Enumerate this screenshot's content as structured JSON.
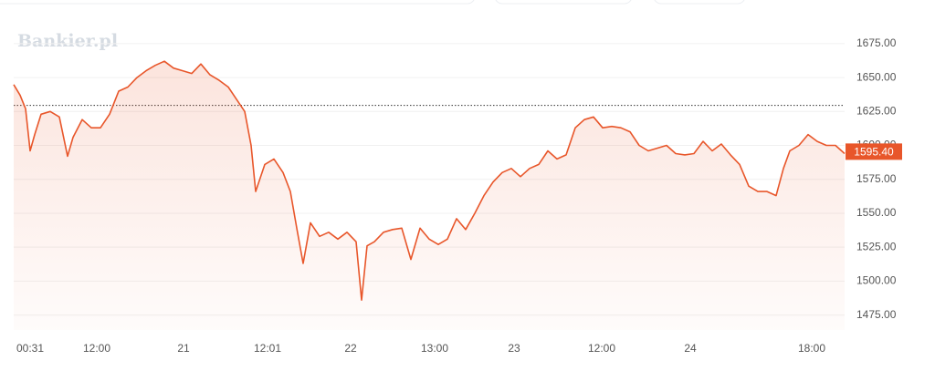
{
  "chart_data": {
    "type": "line",
    "watermark": "Bankier.pl",
    "x": [
      0,
      7,
      13,
      18,
      23,
      30,
      40,
      50,
      59,
      65,
      75,
      85,
      95,
      105,
      115,
      125,
      135,
      145,
      155,
      165,
      175,
      185,
      195,
      205,
      215,
      225,
      235,
      245,
      253,
      260,
      265,
      275,
      285,
      295,
      303,
      310,
      317,
      325,
      335,
      345,
      355,
      365,
      375,
      381,
      387,
      395,
      405,
      415,
      425,
      435,
      445,
      455,
      465,
      475,
      485,
      495,
      505,
      515,
      525,
      535,
      545,
      555,
      565,
      575,
      585,
      595,
      605,
      615,
      625,
      635,
      645,
      655,
      665,
      675,
      685,
      695,
      705,
      715,
      725,
      735,
      745,
      755,
      765,
      775,
      785,
      795,
      805,
      815,
      825,
      835,
      843,
      850,
      860,
      870,
      880,
      890,
      900,
      910
    ],
    "series": [
      {
        "name": "",
        "color": "#e8562a",
        "values": [
          1644.8,
          1637,
          1627,
          1596,
          1608,
          1623,
          1625,
          1621,
          1592,
          1606,
          1619,
          1613,
          1613,
          1623,
          1640,
          1643,
          1650,
          1655,
          1659,
          1662,
          1657,
          1655,
          1653,
          1660,
          1652,
          1648,
          1643,
          1633,
          1625,
          1600,
          1566,
          1586,
          1590,
          1580,
          1566,
          1539,
          1513,
          1543,
          1533,
          1536,
          1531,
          1536,
          1529,
          1486,
          1526,
          1529,
          1536,
          1538,
          1539,
          1516,
          1539,
          1531,
          1527,
          1531,
          1546,
          1538,
          1550,
          1563,
          1573,
          1580,
          1583,
          1577,
          1583,
          1586,
          1596,
          1590,
          1593,
          1613,
          1619,
          1621,
          1613,
          1614,
          1613,
          1610,
          1600,
          1596,
          1598,
          1600,
          1594,
          1593,
          1594,
          1603,
          1596,
          1601,
          1593,
          1586,
          1570,
          1566,
          1566,
          1563,
          1583,
          1596,
          1600,
          1608,
          1603,
          1600,
          1600,
          1594
        ]
      }
    ],
    "xlim": [
      0,
      910
    ],
    "xticks": [
      {
        "value": 18,
        "label": "00:31"
      },
      {
        "value": 91,
        "label": "12:00"
      },
      {
        "value": 186,
        "label": "21"
      },
      {
        "value": 278,
        "label": "12:01"
      },
      {
        "value": 369,
        "label": "22"
      },
      {
        "value": 461,
        "label": "13:00"
      },
      {
        "value": 548,
        "label": "23"
      },
      {
        "value": 644,
        "label": "12:00"
      },
      {
        "value": 741,
        "label": "24"
      },
      {
        "value": 874,
        "label": "18:00"
      }
    ],
    "ylim": [
      1464,
      1687
    ],
    "yticks": [
      {
        "value": 1475,
        "label": "1475.00"
      },
      {
        "value": 1500,
        "label": "1500.00"
      },
      {
        "value": 1525,
        "label": "1525.00"
      },
      {
        "value": 1550,
        "label": "1550.00"
      },
      {
        "value": 1575,
        "label": "1575.00"
      },
      {
        "value": 1600,
        "label": "1600.00"
      },
      {
        "value": 1625,
        "label": "1625.00"
      },
      {
        "value": 1650,
        "label": "1650.00"
      },
      {
        "value": 1675,
        "label": "1675.00"
      }
    ],
    "reference_line": 1629.5,
    "last_price": {
      "value": 1595.4,
      "label": "1595.40"
    },
    "grid": true
  }
}
